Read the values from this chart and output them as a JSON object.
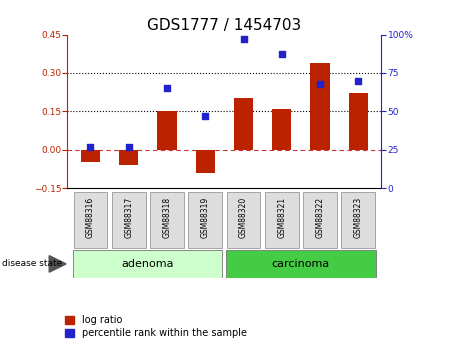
{
  "title": "GDS1777 / 1454703",
  "samples": [
    "GSM88316",
    "GSM88317",
    "GSM88318",
    "GSM88319",
    "GSM88320",
    "GSM88321",
    "GSM88322",
    "GSM88323"
  ],
  "log_ratio": [
    -0.05,
    -0.06,
    0.15,
    -0.09,
    0.2,
    0.16,
    0.34,
    0.22
  ],
  "percentile_rank": [
    27,
    27,
    65,
    47,
    97,
    87,
    68,
    70
  ],
  "groups": [
    {
      "label": "adenoma",
      "indices": [
        0,
        1,
        2,
        3
      ],
      "color": "#ccffcc"
    },
    {
      "label": "carcinoma",
      "indices": [
        4,
        5,
        6,
        7
      ],
      "color": "#44cc44"
    }
  ],
  "group_label": "disease state",
  "bar_color": "#bb2200",
  "dot_color": "#2222cc",
  "ylim_left": [
    -0.15,
    0.45
  ],
  "ylim_right": [
    0,
    100
  ],
  "yticks_left": [
    -0.15,
    0.0,
    0.15,
    0.3,
    0.45
  ],
  "yticks_right": [
    0,
    25,
    50,
    75,
    100
  ],
  "hline_y": [
    0.15,
    0.3
  ],
  "zero_line_color": "#cc3333",
  "background_color": "#ffffff",
  "title_fontsize": 11,
  "tick_fontsize": 6.5,
  "label_fontsize": 8,
  "legend_fontsize": 7
}
